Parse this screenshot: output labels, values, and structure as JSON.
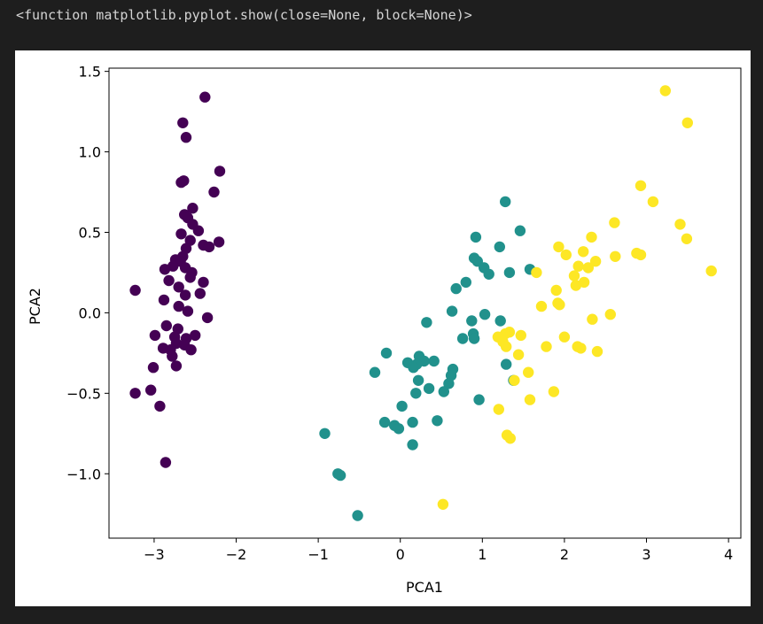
{
  "output_text": "<function matplotlib.pyplot.show(close=None, block=None)>",
  "colors": {
    "background": "#1e1e1e",
    "output_text": "#d4d4d4",
    "figure": "#ffffff",
    "class0": "#440154",
    "class1": "#21918c",
    "class2": "#fde725"
  },
  "chart_data": {
    "type": "scatter",
    "title": "",
    "xlabel": "PCA1",
    "ylabel": "PCA2",
    "xlim": [
      -3.55,
      4.15
    ],
    "ylim": [
      -1.4,
      1.52
    ],
    "xticks": [
      -3,
      -2,
      -1,
      0,
      1,
      2,
      3,
      4
    ],
    "xtick_labels": [
      "−3",
      "−2",
      "−1",
      "0",
      "1",
      "2",
      "3",
      "4"
    ],
    "yticks": [
      -1.0,
      -0.5,
      0.0,
      0.5,
      1.0,
      1.5
    ],
    "ytick_labels": [
      "−1.0",
      "−0.5",
      "0.0",
      "0.5",
      "1.0",
      "1.5"
    ],
    "grid": false,
    "legend": false,
    "series": [
      {
        "color": "#440154",
        "points": [
          [
            -2.38,
            1.34
          ],
          [
            -2.65,
            1.18
          ],
          [
            -2.61,
            1.09
          ],
          [
            -2.2,
            0.88
          ],
          [
            -2.64,
            0.82
          ],
          [
            -2.67,
            0.81
          ],
          [
            -2.27,
            0.75
          ],
          [
            -2.53,
            0.65
          ],
          [
            -2.63,
            0.61
          ],
          [
            -2.59,
            0.59
          ],
          [
            -2.53,
            0.55
          ],
          [
            -2.46,
            0.51
          ],
          [
            -2.67,
            0.49
          ],
          [
            -2.56,
            0.45
          ],
          [
            -2.21,
            0.44
          ],
          [
            -2.4,
            0.42
          ],
          [
            -2.33,
            0.41
          ],
          [
            -2.61,
            0.4
          ],
          [
            -2.65,
            0.35
          ],
          [
            -2.74,
            0.33
          ],
          [
            -2.68,
            0.32
          ],
          [
            -2.77,
            0.29
          ],
          [
            -2.87,
            0.27
          ],
          [
            -2.62,
            0.28
          ],
          [
            -2.54,
            0.25
          ],
          [
            -2.56,
            0.22
          ],
          [
            -2.82,
            0.2
          ],
          [
            -2.7,
            0.16
          ],
          [
            -2.4,
            0.19
          ],
          [
            -2.44,
            0.12
          ],
          [
            -2.62,
            0.11
          ],
          [
            -2.88,
            0.08
          ],
          [
            -2.7,
            0.04
          ],
          [
            -2.59,
            0.01
          ],
          [
            -3.23,
            0.14
          ],
          [
            -2.35,
            -0.03
          ],
          [
            -2.85,
            -0.08
          ],
          [
            -2.71,
            -0.1
          ],
          [
            -2.99,
            -0.14
          ],
          [
            -2.75,
            -0.15
          ],
          [
            -2.5,
            -0.14
          ],
          [
            -2.61,
            -0.16
          ],
          [
            -2.73,
            -0.19
          ],
          [
            -2.63,
            -0.2
          ],
          [
            -2.89,
            -0.22
          ],
          [
            -2.8,
            -0.23
          ],
          [
            -2.55,
            -0.23
          ],
          [
            -2.78,
            -0.27
          ],
          [
            -3.01,
            -0.34
          ],
          [
            -2.73,
            -0.33
          ],
          [
            -3.04,
            -0.48
          ],
          [
            -3.23,
            -0.5
          ],
          [
            -2.93,
            -0.58
          ],
          [
            -2.86,
            -0.93
          ]
        ]
      },
      {
        "color": "#21918c",
        "points": [
          [
            1.28,
            0.69
          ],
          [
            1.46,
            0.51
          ],
          [
            0.92,
            0.47
          ],
          [
            1.21,
            0.41
          ],
          [
            0.9,
            0.34
          ],
          [
            0.94,
            0.32
          ],
          [
            1.02,
            0.28
          ],
          [
            1.58,
            0.27
          ],
          [
            1.33,
            0.25
          ],
          [
            1.08,
            0.24
          ],
          [
            0.8,
            0.19
          ],
          [
            0.68,
            0.15
          ],
          [
            0.63,
            0.01
          ],
          [
            1.03,
            -0.01
          ],
          [
            0.87,
            -0.05
          ],
          [
            0.32,
            -0.06
          ],
          [
            1.22,
            -0.05
          ],
          [
            0.89,
            -0.13
          ],
          [
            0.9,
            -0.16
          ],
          [
            0.76,
            -0.16
          ],
          [
            -0.17,
            -0.25
          ],
          [
            0.23,
            -0.27
          ],
          [
            0.29,
            -0.3
          ],
          [
            0.09,
            -0.31
          ],
          [
            0.2,
            -0.32
          ],
          [
            0.16,
            -0.34
          ],
          [
            0.41,
            -0.3
          ],
          [
            1.29,
            -0.32
          ],
          [
            -0.31,
            -0.37
          ],
          [
            0.64,
            -0.35
          ],
          [
            0.62,
            -0.39
          ],
          [
            0.22,
            -0.42
          ],
          [
            1.38,
            -0.42
          ],
          [
            0.59,
            -0.44
          ],
          [
            0.35,
            -0.47
          ],
          [
            0.53,
            -0.49
          ],
          [
            0.19,
            -0.5
          ],
          [
            0.96,
            -0.54
          ],
          [
            0.02,
            -0.58
          ],
          [
            -0.19,
            -0.68
          ],
          [
            0.15,
            -0.68
          ],
          [
            0.45,
            -0.67
          ],
          [
            -0.07,
            -0.7
          ],
          [
            -0.02,
            -0.72
          ],
          [
            0.15,
            -0.82
          ],
          [
            -0.92,
            -0.75
          ],
          [
            -0.76,
            -1.0
          ],
          [
            -0.73,
            -1.01
          ],
          [
            -0.52,
            -1.26
          ]
        ]
      },
      {
        "color": "#fde725",
        "points": [
          [
            3.23,
            1.38
          ],
          [
            3.5,
            1.18
          ],
          [
            2.93,
            0.79
          ],
          [
            3.08,
            0.69
          ],
          [
            2.61,
            0.56
          ],
          [
            3.41,
            0.55
          ],
          [
            2.33,
            0.47
          ],
          [
            3.49,
            0.46
          ],
          [
            1.93,
            0.41
          ],
          [
            2.23,
            0.38
          ],
          [
            2.02,
            0.36
          ],
          [
            2.62,
            0.35
          ],
          [
            2.88,
            0.37
          ],
          [
            2.93,
            0.36
          ],
          [
            2.38,
            0.32
          ],
          [
            2.17,
            0.29
          ],
          [
            2.29,
            0.28
          ],
          [
            2.12,
            0.23
          ],
          [
            1.66,
            0.25
          ],
          [
            3.79,
            0.26
          ],
          [
            2.24,
            0.19
          ],
          [
            2.14,
            0.17
          ],
          [
            1.9,
            0.14
          ],
          [
            1.92,
            0.06
          ],
          [
            1.72,
            0.04
          ],
          [
            1.94,
            0.05
          ],
          [
            2.56,
            -0.01
          ],
          [
            2.34,
            -0.04
          ],
          [
            1.33,
            -0.12
          ],
          [
            1.28,
            -0.13
          ],
          [
            1.19,
            -0.15
          ],
          [
            1.25,
            -0.18
          ],
          [
            1.47,
            -0.14
          ],
          [
            1.29,
            -0.21
          ],
          [
            2.0,
            -0.15
          ],
          [
            1.78,
            -0.21
          ],
          [
            2.16,
            -0.21
          ],
          [
            2.2,
            -0.22
          ],
          [
            2.4,
            -0.24
          ],
          [
            1.44,
            -0.26
          ],
          [
            1.56,
            -0.37
          ],
          [
            1.39,
            -0.42
          ],
          [
            1.87,
            -0.49
          ],
          [
            1.58,
            -0.54
          ],
          [
            1.2,
            -0.6
          ],
          [
            1.3,
            -0.76
          ],
          [
            1.34,
            -0.78
          ],
          [
            0.52,
            -1.19
          ]
        ]
      }
    ]
  }
}
